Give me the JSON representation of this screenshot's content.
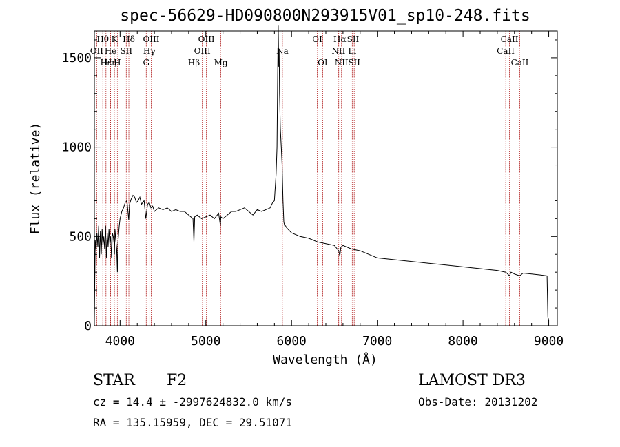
{
  "chart_data": {
    "type": "line",
    "title": "spec-56629-HD090800N293915V01_sp10-248.fits",
    "xlabel": "Wavelength (Å)",
    "ylabel": "Flux (relative)",
    "xlim": [
      3700,
      9100
    ],
    "ylim": [
      0,
      1650
    ],
    "x_ticks": [
      4000,
      5000,
      6000,
      7000,
      8000,
      9000
    ],
    "x_tick_labels": [
      "4000",
      "5000",
      "6000",
      "7000",
      "8000",
      "9000"
    ],
    "y_ticks": [
      0,
      500,
      1000,
      1500
    ],
    "y_tick_labels": [
      "0",
      "500",
      "1000",
      "1500"
    ],
    "series": [
      {
        "name": "flux",
        "x": [
          3700,
          3710,
          3720,
          3730,
          3740,
          3750,
          3760,
          3770,
          3780,
          3790,
          3800,
          3810,
          3820,
          3830,
          3840,
          3850,
          3860,
          3870,
          3880,
          3890,
          3900,
          3910,
          3920,
          3930,
          3935,
          3940,
          3950,
          3960,
          3968,
          3975,
          3990,
          4000,
          4020,
          4040,
          4060,
          4080,
          4101,
          4110,
          4130,
          4150,
          4170,
          4190,
          4210,
          4230,
          4250,
          4280,
          4300,
          4320,
          4340,
          4360,
          4380,
          4400,
          4450,
          4500,
          4550,
          4600,
          4650,
          4700,
          4750,
          4800,
          4850,
          4861,
          4870,
          4900,
          4950,
          5000,
          5050,
          5100,
          5150,
          5170,
          5175,
          5200,
          5250,
          5300,
          5350,
          5400,
          5450,
          5500,
          5550,
          5600,
          5650,
          5700,
          5750,
          5780,
          5800,
          5820,
          5830,
          5835,
          5840,
          5845,
          5850,
          5855,
          5860,
          5865,
          5870,
          5880,
          5890,
          5900,
          5910,
          5920,
          5930,
          5940,
          5960,
          6000,
          6100,
          6200,
          6300,
          6400,
          6500,
          6550,
          6563,
          6575,
          6600,
          6700,
          6800,
          6900,
          7000,
          7200,
          7400,
          7600,
          7800,
          8000,
          8200,
          8400,
          8500,
          8542,
          8560,
          8600,
          8662,
          8700,
          8800,
          8900,
          8980,
          8990,
          9000
        ],
        "y": [
          30,
          480,
          420,
          520,
          440,
          560,
          380,
          530,
          400,
          540,
          450,
          500,
          430,
          560,
          380,
          520,
          440,
          540,
          460,
          500,
          380,
          520,
          500,
          460,
          400,
          540,
          480,
          430,
          300,
          470,
          560,
          600,
          640,
          660,
          690,
          700,
          590,
          680,
          710,
          730,
          720,
          690,
          700,
          720,
          680,
          700,
          600,
          680,
          690,
          660,
          670,
          640,
          660,
          650,
          660,
          640,
          650,
          640,
          640,
          620,
          600,
          470,
          610,
          620,
          600,
          610,
          620,
          600,
          630,
          560,
          610,
          600,
          620,
          640,
          640,
          650,
          660,
          640,
          620,
          650,
          640,
          650,
          660,
          690,
          700,
          850,
          1000,
          1250,
          1500,
          1680,
          1450,
          1550,
          1300,
          1200,
          1100,
          1000,
          900,
          700,
          580,
          560,
          560,
          550,
          540,
          520,
          500,
          490,
          470,
          460,
          450,
          420,
          390,
          440,
          450,
          430,
          420,
          400,
          380,
          370,
          360,
          350,
          340,
          330,
          320,
          310,
          300,
          280,
          300,
          290,
          280,
          295,
          290,
          285,
          280,
          50,
          30
        ]
      }
    ],
    "spectral_lines": [
      {
        "name": "Hθ",
        "wavelength": 3798,
        "row": 0
      },
      {
        "name": "K",
        "wavelength": 3934,
        "row": 0
      },
      {
        "name": "Hδ",
        "wavelength": 4102,
        "row": 0
      },
      {
        "name": "OIII",
        "wavelength": 4363,
        "row": 0
      },
      {
        "name": "OIII",
        "wavelength": 5007,
        "row": 0
      },
      {
        "name": "OI",
        "wavelength": 6300,
        "row": 0
      },
      {
        "name": "Hα",
        "wavelength": 6563,
        "row": 0
      },
      {
        "name": "SII",
        "wavelength": 6717,
        "row": 0
      },
      {
        "name": "CaII",
        "wavelength": 8542,
        "row": 0
      },
      {
        "name": "OII",
        "wavelength": 3727,
        "row": 1
      },
      {
        "name": "He",
        "wavelength": 3889,
        "row": 1
      },
      {
        "name": "SII",
        "wavelength": 4072,
        "row": 1
      },
      {
        "name": "Hγ",
        "wavelength": 4340,
        "row": 1
      },
      {
        "name": "OIII",
        "wavelength": 4959,
        "row": 1
      },
      {
        "name": "Na",
        "wavelength": 5893,
        "row": 1
      },
      {
        "name": "NII",
        "wavelength": 6548,
        "row": 1
      },
      {
        "name": "Li",
        "wavelength": 6708,
        "row": 1
      },
      {
        "name": "CaII",
        "wavelength": 8498,
        "row": 1
      },
      {
        "name": "Hε",
        "wavelength": 3835,
        "row": 2
      },
      {
        "name": "Hη",
        "wavelength": 3889,
        "row": 2
      },
      {
        "name": "H",
        "wavelength": 3968,
        "row": 2
      },
      {
        "name": "G",
        "wavelength": 4305,
        "row": 2
      },
      {
        "name": "Hβ",
        "wavelength": 4861,
        "row": 2
      },
      {
        "name": "Mg",
        "wavelength": 5175,
        "row": 2
      },
      {
        "name": "OI",
        "wavelength": 6363,
        "row": 2
      },
      {
        "name": "NII",
        "wavelength": 6583,
        "row": 2
      },
      {
        "name": "SII",
        "wavelength": 6731,
        "row": 2
      },
      {
        "name": "CaII",
        "wavelength": 8662,
        "row": 2
      }
    ]
  },
  "info": {
    "object_type": "STAR",
    "subclass": "F2",
    "survey": "LAMOST DR3",
    "velocity": "cz = 14.4 ± -2997624832.0 km/s",
    "obs_date": "Obs-Date: 20131202",
    "coords": "RA = 135.15959, DEC =  29.51071"
  },
  "colors": {
    "spectrum": "#000000",
    "line_marker": "#b22222",
    "axes": "#000000"
  }
}
